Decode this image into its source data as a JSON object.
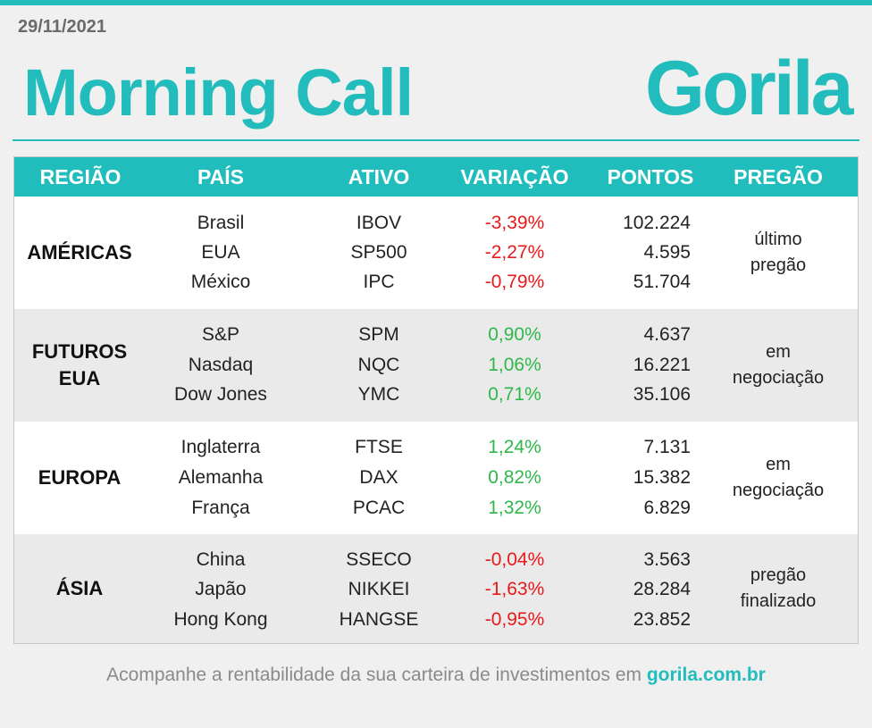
{
  "header": {
    "date": "29/11/2021",
    "title": "Morning Call",
    "logo": "Gorila"
  },
  "colors": {
    "accent": "#22bcbc",
    "negative": "#e81a1a",
    "positive": "#2eb84a"
  },
  "table": {
    "columns": [
      "REGIÃO",
      "PAÍS",
      "ATIVO",
      "VARIAÇÃO",
      "PONTOS",
      "PREGÃO"
    ],
    "groups": [
      {
        "region": "AMÉRICAS",
        "pregao": "último\npregão",
        "rows": [
          {
            "pais": "Brasil",
            "ativo": "IBOV",
            "variacao": "-3,39%",
            "pontos": "102.224"
          },
          {
            "pais": "EUA",
            "ativo": "SP500",
            "variacao": "-2,27%",
            "pontos": "4.595"
          },
          {
            "pais": "México",
            "ativo": "IPC",
            "variacao": "-0,79%",
            "pontos": "51.704"
          }
        ]
      },
      {
        "region": "FUTUROS\nEUA",
        "pregao": "em\nnegociação",
        "rows": [
          {
            "pais": "S&P",
            "ativo": "SPM",
            "variacao": "0,90%",
            "pontos": "4.637"
          },
          {
            "pais": "Nasdaq",
            "ativo": "NQC",
            "variacao": "1,06%",
            "pontos": "16.221"
          },
          {
            "pais": "Dow Jones",
            "ativo": "YMC",
            "variacao": "0,71%",
            "pontos": "35.106"
          }
        ]
      },
      {
        "region": "EUROPA",
        "pregao": "em\nnegociação",
        "rows": [
          {
            "pais": "Inglaterra",
            "ativo": "FTSE",
            "variacao": "1,24%",
            "pontos": "7.131"
          },
          {
            "pais": "Alemanha",
            "ativo": "DAX",
            "variacao": "0,82%",
            "pontos": "15.382"
          },
          {
            "pais": "França",
            "ativo": "PCAC",
            "variacao": "1,32%",
            "pontos": "6.829"
          }
        ]
      },
      {
        "region": "ÁSIA",
        "pregao": "pregão\nfinalizado",
        "rows": [
          {
            "pais": "China",
            "ativo": "SSECO",
            "variacao": "-0,04%",
            "pontos": "3.563"
          },
          {
            "pais": "Japão",
            "ativo": "NIKKEI",
            "variacao": "-1,63%",
            "pontos": "28.284"
          },
          {
            "pais": "Hong Kong",
            "ativo": "HANGSE",
            "variacao": "-0,95%",
            "pontos": "23.852"
          }
        ]
      }
    ]
  },
  "footer": {
    "text": "Acompanhe a rentabilidade da sua carteira de investimentos em ",
    "link": "gorila.com.br"
  }
}
